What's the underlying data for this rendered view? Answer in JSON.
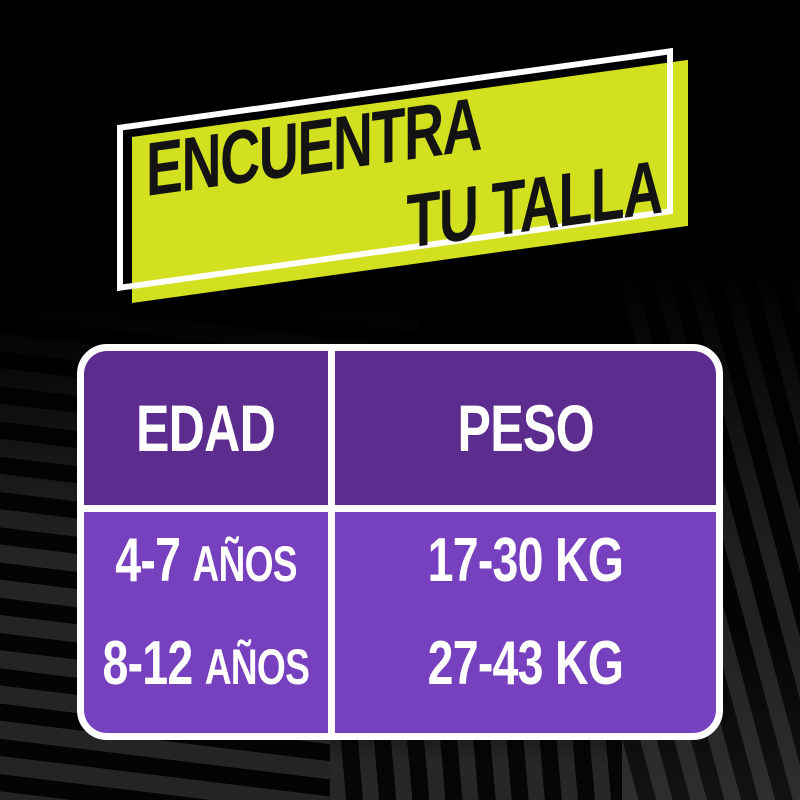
{
  "banner": {
    "line1": "ENCUENTRA",
    "line2": "TU TALLA",
    "bg_color": "#d2e01f",
    "text_color": "#131313",
    "outline_color": "#ffffff"
  },
  "table": {
    "headers": [
      "EDAD",
      "PESO"
    ],
    "rows": [
      {
        "age_range": "4-7",
        "age_unit": "AÑOS",
        "weight": "17-30 KG"
      },
      {
        "age_range": "8-12",
        "age_unit": "AÑOS",
        "weight": "27-43 KG"
      }
    ],
    "header_bg": "#5c2c8f",
    "body_bg": "#7740bf",
    "divider_color": "#ffffff"
  },
  "background": {
    "base_color": "#000000",
    "stripe_color": "#262626"
  },
  "chart_data": {
    "type": "table",
    "title": "ENCUENTRA TU TALLA",
    "columns": [
      "EDAD",
      "PESO"
    ],
    "rows": [
      [
        "4-7 AÑOS",
        "17-30 KG"
      ],
      [
        "8-12 AÑOS",
        "27-43 KG"
      ]
    ]
  }
}
